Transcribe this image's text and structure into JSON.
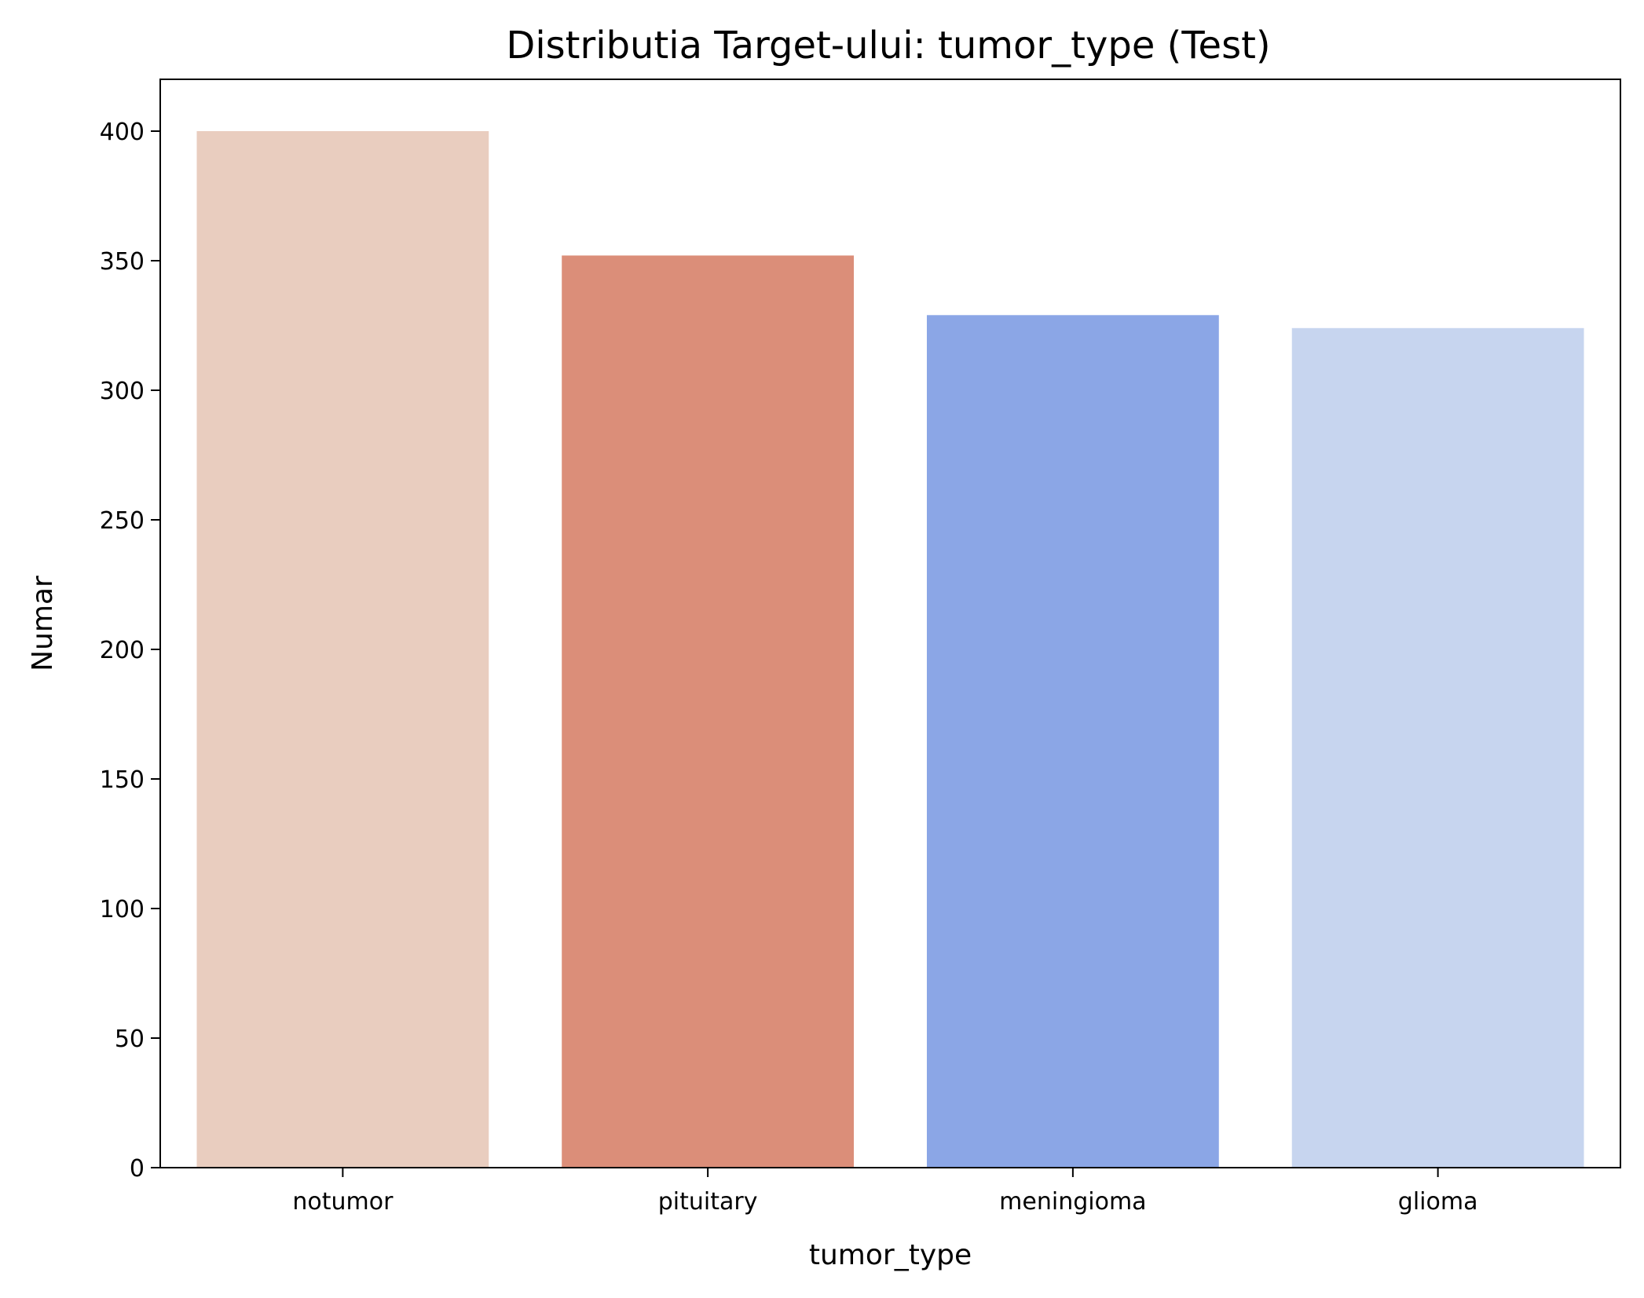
{
  "chart_data": {
    "type": "bar",
    "title": "Distributia Target-ului: tumor_type (Test)",
    "xlabel": "tumor_type",
    "ylabel": "Numar",
    "categories": [
      "notumor",
      "pituitary",
      "meningioma",
      "glioma"
    ],
    "values": [
      400,
      352,
      329,
      324
    ],
    "colors": [
      "#e9cdbf",
      "#db8e79",
      "#8ba6e6",
      "#c7d5ef"
    ],
    "yticks": [
      0,
      50,
      100,
      150,
      200,
      250,
      300,
      350,
      400
    ],
    "ylim": [
      0,
      420
    ],
    "grid": false,
    "legend": "none"
  }
}
